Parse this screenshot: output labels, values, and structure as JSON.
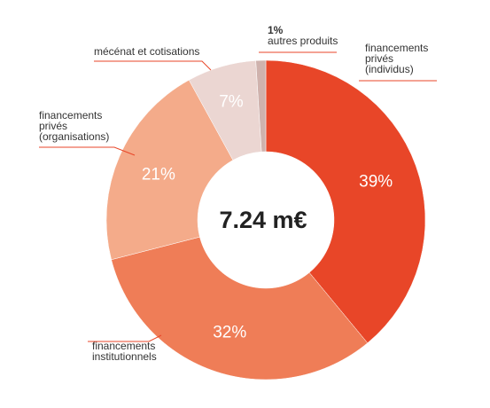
{
  "chart_data": {
    "type": "pie",
    "donut": true,
    "center_label": "7.24 m€",
    "slices": [
      {
        "label_lines": [
          "financements",
          "privés",
          "(individus)"
        ],
        "value": 39,
        "value_label": "39%",
        "color": "#e84628"
      },
      {
        "label_lines": [
          "financements",
          "institutionnels"
        ],
        "value": 32,
        "value_label": "32%",
        "color": "#ef7d57"
      },
      {
        "label_lines": [
          "financements",
          "privés",
          "(organisations)"
        ],
        "value": 21,
        "value_label": "21%",
        "color": "#f4ab8a"
      },
      {
        "label_lines": [
          "mécénat et cotisations"
        ],
        "value": 7,
        "value_label": "7%",
        "color": "#ebd6d2"
      },
      {
        "label_lines": [
          "autres produits"
        ],
        "value": 1,
        "value_label": "1%",
        "color": "#cfb2ad"
      }
    ],
    "line_color": "#e84628"
  }
}
